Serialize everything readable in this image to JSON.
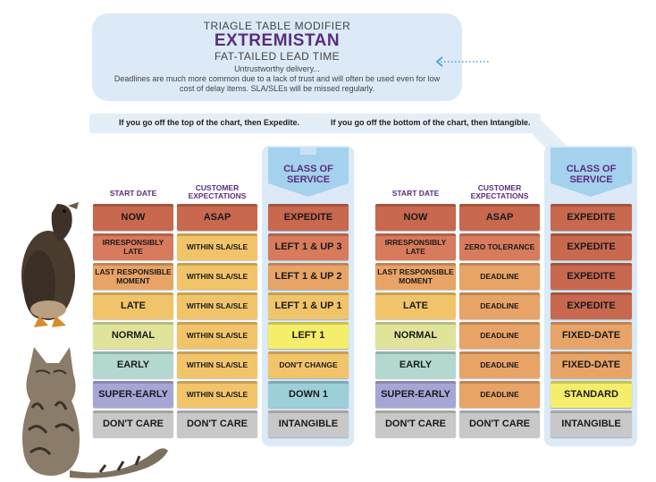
{
  "header": {
    "supertitle": "TRIAGLE TABLE MODIFIER",
    "title": "EXTREMISTAN",
    "subtitle": "FAT-TAILED LEAD TIME",
    "desc1": "Untrustworthy delivery...",
    "desc2": "Deadlines are much more common due to a lack of trust and will often be used even for low cost of delay items. SLA/SLEs will be missed regularly."
  },
  "guidance": {
    "top": "If you go off the top of the chart, then Expedite.",
    "bottom": "If you go off the bottom of the chart, then Intangible."
  },
  "headings": {
    "start_date": "START DATE",
    "customer_expectations": "CUSTOMER EXPECTATIONS",
    "class_of_service": "CLASS OF SERVICE"
  },
  "colors": {
    "header_bg": "#dbeaf6",
    "title_purple": "#5a2d7e",
    "now": "#c8684f",
    "irresponsibly_late": "#d87a5c",
    "last_responsible": "#e8a367",
    "late": "#f2c46a",
    "normal": "#dfe49a",
    "early": "#b3d8d0",
    "super_early": "#a6a6d6",
    "dont_care": "#c8c8c8",
    "expectation_sla": "#f2c46a",
    "yellow_standard": "#f5ee6a",
    "blue_down": "#9dcfd8"
  },
  "table_left": {
    "start_dates": [
      "NOW",
      "IRRESPONSIBLY LATE",
      "LAST RESPONSIBLE MOMENT",
      "LATE",
      "NORMAL",
      "EARLY",
      "SUPER-EARLY",
      "DON'T CARE"
    ],
    "expectations": [
      "ASAP",
      "WITHIN SLA/SLE",
      "WITHIN SLA/SLE",
      "WITHIN SLA/SLE",
      "WITHIN SLA/SLE",
      "WITHIN SLA/SLE",
      "WITHIN SLA/SLE",
      "DON'T CARE"
    ],
    "classes": [
      "EXPEDITE",
      "LEFT 1 & UP 3",
      "LEFT 1 & UP 2",
      "LEFT 1 & UP 1",
      "LEFT 1",
      "DON'T CHANGE",
      "DOWN 1",
      "INTANGIBLE"
    ]
  },
  "table_right": {
    "start_dates": [
      "NOW",
      "IRRESPONSIBLY LATE",
      "LAST RESPONSIBLE MOMENT",
      "LATE",
      "NORMAL",
      "EARLY",
      "SUPER-EARLY",
      "DON'T CARE"
    ],
    "expectations": [
      "ASAP",
      "ZERO TOLERANCE",
      "DEADLINE",
      "DEADLINE",
      "DEADLINE",
      "DEADLINE",
      "DEADLINE",
      "DON'T CARE"
    ],
    "classes": [
      "EXPEDITE",
      "EXPEDITE",
      "EXPEDITE",
      "EXPEDITE",
      "FIXED-DATE",
      "FIXED-DATE",
      "STANDARD",
      "INTANGIBLE"
    ]
  },
  "icons": {
    "duck": "duck-image",
    "cat": "cat-image",
    "arrow": "dotted-arrow-left-icon"
  }
}
